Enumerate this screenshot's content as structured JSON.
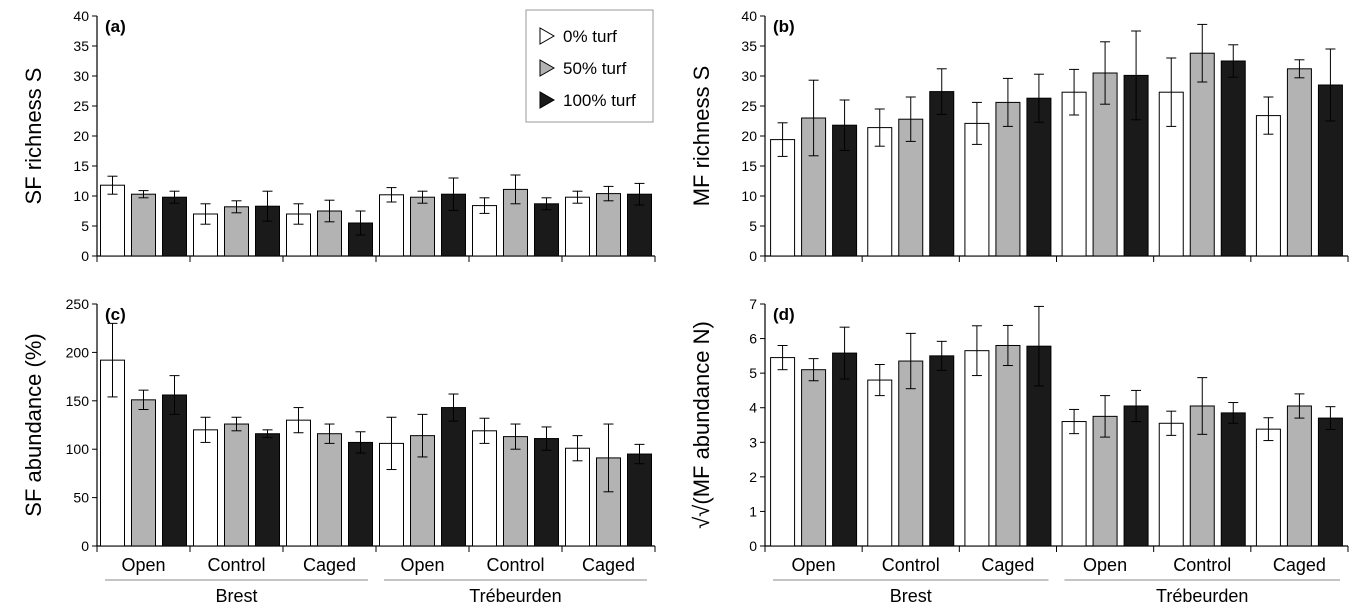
{
  "legend": {
    "items": [
      {
        "label": "0% turf",
        "color": "#ffffff"
      },
      {
        "label": "50% turf",
        "color": "#b3b3b3"
      },
      {
        "label": "100% turf",
        "color": "#1a1a1a"
      }
    ],
    "placement": "top-center of panel (a)"
  },
  "chart_data": [
    {
      "type": "bar",
      "panel_label": "(a)",
      "ylabel": "SF richness S",
      "ylim": [
        0,
        40
      ],
      "yticks": [
        0,
        5,
        10,
        15,
        20,
        25,
        30,
        35,
        40
      ],
      "categories": [
        "Open",
        "Control",
        "Caged",
        "Open",
        "Control",
        "Caged"
      ],
      "groups": [
        {
          "name": "Brest",
          "span": [
            0,
            2
          ]
        },
        {
          "name": "Trébeurden",
          "span": [
            3,
            5
          ]
        }
      ],
      "series": [
        {
          "name": "0% turf",
          "values": [
            11.8,
            7.0,
            7.0,
            10.2,
            8.4,
            9.8
          ],
          "errors": [
            1.5,
            1.7,
            1.7,
            1.2,
            1.3,
            1.0
          ]
        },
        {
          "name": "50% turf",
          "values": [
            10.3,
            8.2,
            7.5,
            9.8,
            11.1,
            10.4
          ],
          "errors": [
            0.6,
            1.0,
            1.8,
            1.0,
            2.4,
            1.2
          ]
        },
        {
          "name": "100% turf",
          "values": [
            9.8,
            8.3,
            5.5,
            10.3,
            8.7,
            10.3
          ],
          "errors": [
            1.0,
            2.5,
            2.0,
            2.7,
            1.0,
            1.8
          ]
        }
      ]
    },
    {
      "type": "bar",
      "panel_label": "(b)",
      "ylabel": "MF richness S",
      "ylim": [
        0,
        40
      ],
      "yticks": [
        0,
        5,
        10,
        15,
        20,
        25,
        30,
        35,
        40
      ],
      "categories": [
        "Open",
        "Control",
        "Caged",
        "Open",
        "Control",
        "Caged"
      ],
      "groups": [
        {
          "name": "Brest",
          "span": [
            0,
            2
          ]
        },
        {
          "name": "Trébeurden",
          "span": [
            3,
            5
          ]
        }
      ],
      "series": [
        {
          "name": "0% turf",
          "values": [
            19.4,
            21.4,
            22.1,
            27.3,
            27.3,
            23.4
          ],
          "errors": [
            2.8,
            3.1,
            3.5,
            3.8,
            5.7,
            3.1
          ]
        },
        {
          "name": "50% turf",
          "values": [
            23.0,
            22.8,
            25.6,
            30.5,
            33.8,
            31.2
          ],
          "errors": [
            6.3,
            3.7,
            4.0,
            5.2,
            4.8,
            1.5
          ]
        },
        {
          "name": "100% turf",
          "values": [
            21.8,
            27.4,
            26.3,
            30.1,
            32.5,
            28.5
          ],
          "errors": [
            4.2,
            3.8,
            4.0,
            7.4,
            2.7,
            6.0
          ]
        }
      ]
    },
    {
      "type": "bar",
      "panel_label": "(c)",
      "ylabel": "SF abundance (%)",
      "ylim": [
        0,
        250
      ],
      "yticks": [
        0,
        50,
        100,
        150,
        200,
        250
      ],
      "categories": [
        "Open",
        "Control",
        "Caged",
        "Open",
        "Control",
        "Caged"
      ],
      "groups": [
        {
          "name": "Brest",
          "span": [
            0,
            2
          ]
        },
        {
          "name": "Trébeurden",
          "span": [
            3,
            5
          ]
        }
      ],
      "series": [
        {
          "name": "0% turf",
          "values": [
            192,
            120,
            130,
            106,
            119,
            101
          ],
          "errors": [
            38,
            13,
            13,
            27,
            13,
            13
          ]
        },
        {
          "name": "50% turf",
          "values": [
            151,
            126,
            116,
            114,
            113,
            91
          ],
          "errors": [
            10,
            7,
            10,
            22,
            13,
            35
          ]
        },
        {
          "name": "100% turf",
          "values": [
            156,
            116,
            107,
            143,
            111,
            95
          ],
          "errors": [
            20,
            4,
            11,
            14,
            12,
            10
          ]
        }
      ]
    },
    {
      "type": "bar",
      "panel_label": "(d)",
      "ylabel": "√√(MF abundance N)",
      "ylim": [
        0,
        7
      ],
      "yticks": [
        0,
        1,
        2,
        3,
        4,
        5,
        6,
        7
      ],
      "categories": [
        "Open",
        "Control",
        "Caged",
        "Open",
        "Control",
        "Caged"
      ],
      "groups": [
        {
          "name": "Brest",
          "span": [
            0,
            2
          ]
        },
        {
          "name": "Trébeurden",
          "span": [
            3,
            5
          ]
        }
      ],
      "series": [
        {
          "name": "0% turf",
          "values": [
            5.45,
            4.8,
            5.65,
            3.6,
            3.55,
            3.38
          ],
          "errors": [
            0.35,
            0.45,
            0.72,
            0.35,
            0.35,
            0.33
          ]
        },
        {
          "name": "50% turf",
          "values": [
            5.1,
            5.35,
            5.8,
            3.75,
            4.05,
            4.05
          ],
          "errors": [
            0.32,
            0.8,
            0.58,
            0.6,
            0.82,
            0.35
          ]
        },
        {
          "name": "100% turf",
          "values": [
            5.58,
            5.5,
            5.78,
            4.05,
            3.85,
            3.7
          ],
          "errors": [
            0.75,
            0.42,
            1.15,
            0.45,
            0.3,
            0.33
          ]
        }
      ]
    }
  ]
}
